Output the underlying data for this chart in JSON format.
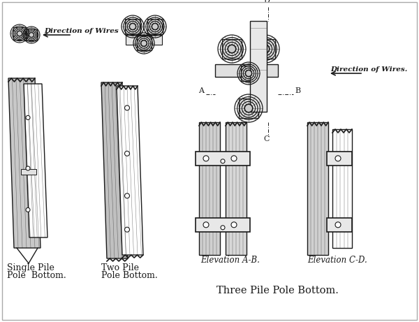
{
  "bg_color": "#ffffff",
  "line_color": "#1a1a1a",
  "labels": {
    "single": [
      "Single Pile",
      "Pole  Bottom."
    ],
    "two": [
      "Two Pile",
      "Pole Bottom."
    ],
    "three": "Three Pile Pole Bottom.",
    "elev_ab": "Elevation A-B.",
    "elev_cd": "Elevation C-D.",
    "dir_wires1": "Direction of Wires",
    "dir_wires2": "Direction of Wires."
  },
  "section_labels": [
    "A",
    "B",
    "C",
    "D"
  ]
}
